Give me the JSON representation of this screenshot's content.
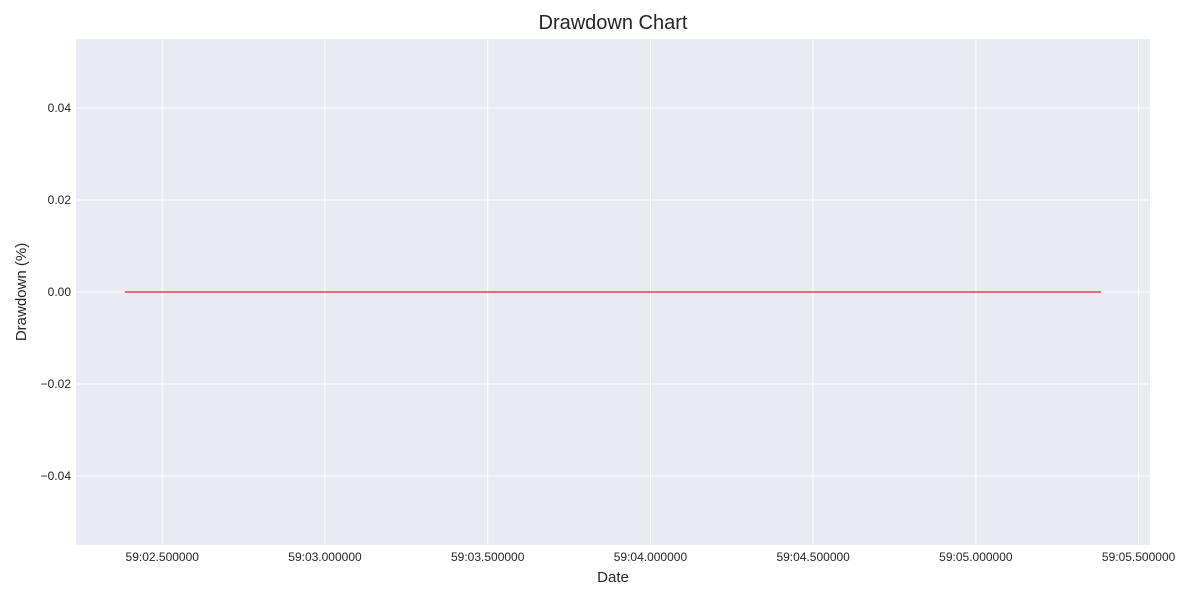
{
  "chart_data": {
    "type": "line",
    "title": "Drawdown Chart",
    "xlabel": "Date",
    "ylabel": "Drawdown (%)",
    "x_ticks": [
      {
        "value": 2.5,
        "label": "59:02.500000"
      },
      {
        "value": 3.0,
        "label": "59:03.000000"
      },
      {
        "value": 3.5,
        "label": "59:03.500000"
      },
      {
        "value": 4.0,
        "label": "59:04.000000"
      },
      {
        "value": 4.5,
        "label": "59:04.500000"
      },
      {
        "value": 5.0,
        "label": "59:05.000000"
      },
      {
        "value": 5.5,
        "label": "59:05.500000"
      }
    ],
    "y_ticks": [
      {
        "value": 0.04,
        "label": "0.04"
      },
      {
        "value": 0.02,
        "label": "0.02"
      },
      {
        "value": 0.0,
        "label": "0.00"
      },
      {
        "value": -0.02,
        "label": "−0.02"
      },
      {
        "value": -0.04,
        "label": "−0.04"
      }
    ],
    "xlim": [
      2.235,
      5.535
    ],
    "ylim": [
      -0.055,
      0.055
    ],
    "grid": true,
    "series": [
      {
        "color": "#d62728",
        "x": [
          2.385,
          5.385
        ],
        "y": [
          0.0,
          0.0
        ]
      }
    ]
  },
  "colors": {
    "plot_background": "#eaeaf2",
    "grid": "#ffffff",
    "text": "#262626",
    "line": "#d62728"
  }
}
